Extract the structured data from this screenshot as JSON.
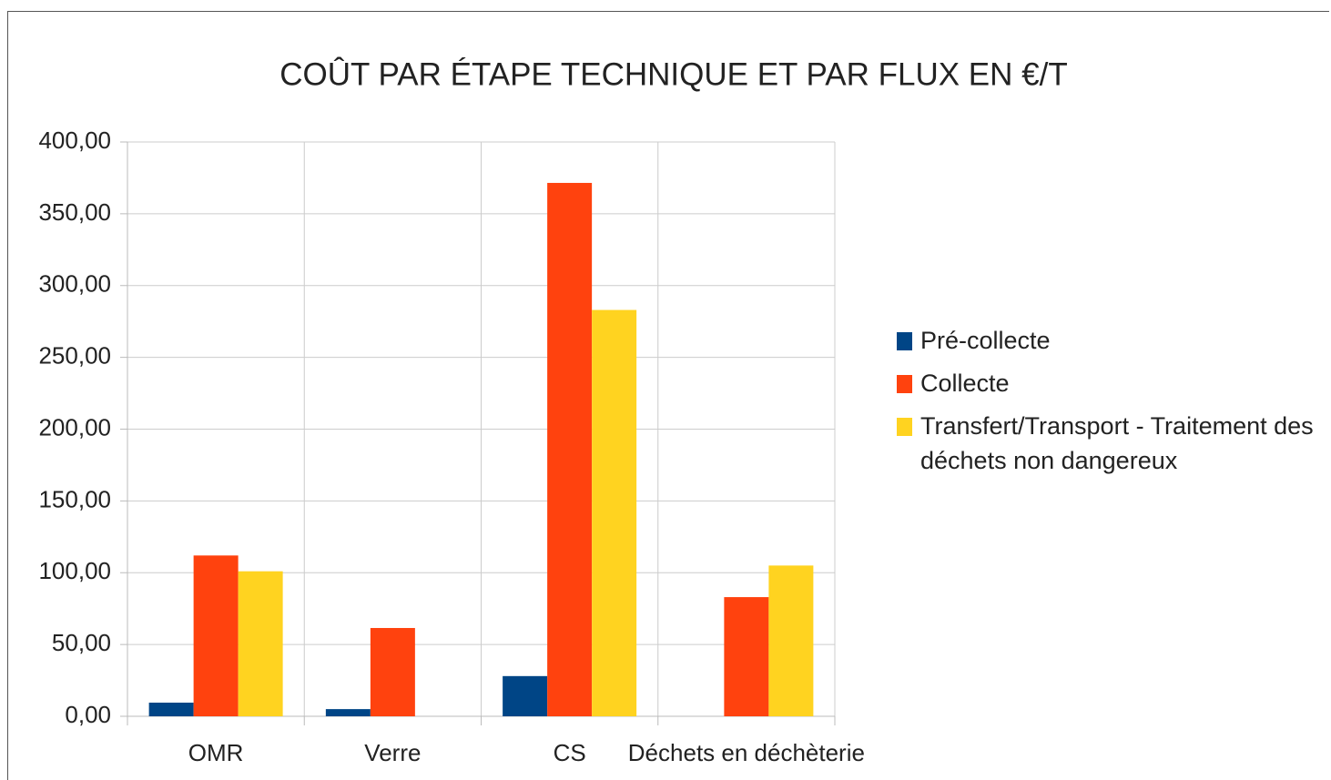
{
  "chart_data": {
    "type": "bar",
    "title": "COÛT PAR ÉTAPE TECHNIQUE ET PAR FLUX EN €/T",
    "categories": [
      "OMR",
      "Verre",
      "CS",
      "Déchets en déchèterie"
    ],
    "series": [
      {
        "name": "Pré-collecte",
        "color": "#004586",
        "values": [
          9.5,
          5,
          28,
          null
        ]
      },
      {
        "name": "Collecte",
        "color": "#ff420e",
        "values": [
          112,
          61.5,
          371.5,
          83
        ]
      },
      {
        "name": "Transfert/Transport - Traitement des déchets non dangereux",
        "color": "#ffd320",
        "values": [
          101,
          null,
          283,
          105
        ]
      }
    ],
    "ylim": [
      0,
      400
    ],
    "yticks": [
      {
        "value": 0,
        "label": "0,00"
      },
      {
        "value": 50,
        "label": "50,00"
      },
      {
        "value": 100,
        "label": "100,00"
      },
      {
        "value": 150,
        "label": "150,00"
      },
      {
        "value": 200,
        "label": "200,00"
      },
      {
        "value": 250,
        "label": "250,00"
      },
      {
        "value": 300,
        "label": "300,00"
      },
      {
        "value": 350,
        "label": "350,00"
      },
      {
        "value": 400,
        "label": "400,00"
      }
    ],
    "grid": true,
    "legend": "right"
  }
}
